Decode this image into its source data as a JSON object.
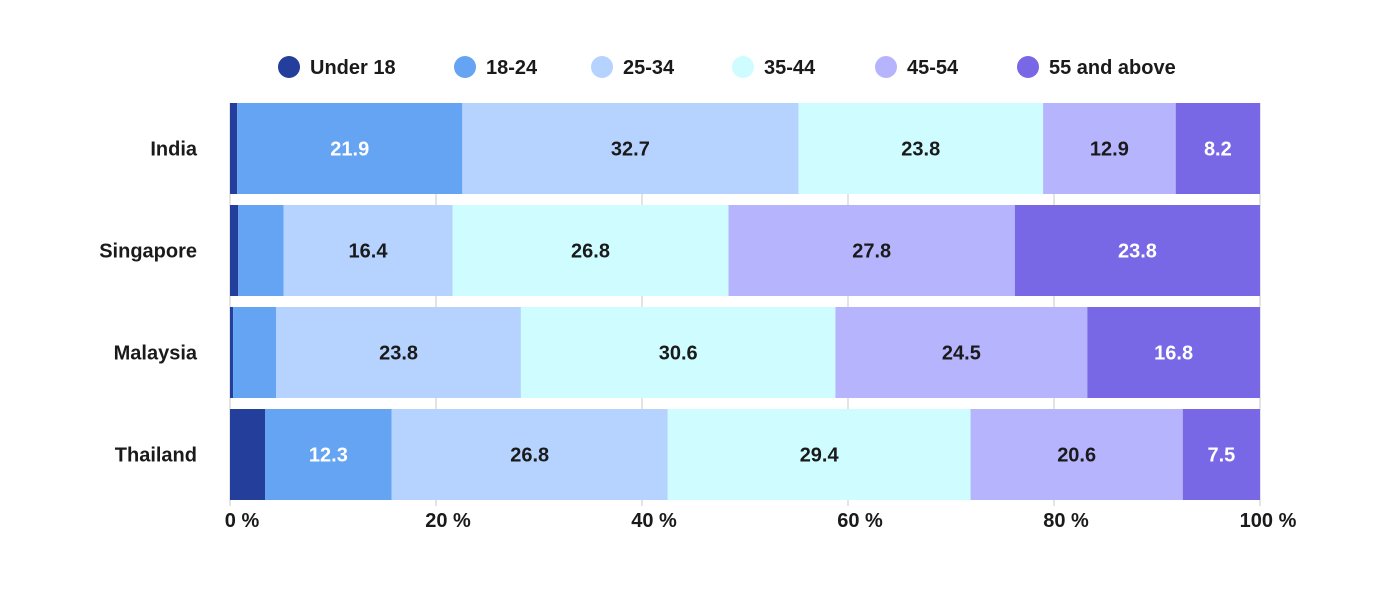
{
  "chart_data": {
    "type": "bar",
    "orientation": "horizontal",
    "stacked": true,
    "categories": [
      "India",
      "Singapore",
      "Malaysia",
      "Thailand"
    ],
    "series": [
      {
        "name": "Under 18",
        "color": "#233e9b",
        "values": [
          0.7,
          0.8,
          0.3,
          3.4
        ]
      },
      {
        "name": "18-24",
        "color": "#65a3f3",
        "values": [
          21.9,
          4.4,
          4.2,
          12.3
        ]
      },
      {
        "name": "25-34",
        "color": "#b5d3fe",
        "values": [
          32.7,
          16.4,
          23.8,
          26.8
        ]
      },
      {
        "name": "35-44",
        "color": "#cffcff",
        "values": [
          23.8,
          26.8,
          30.6,
          29.4
        ]
      },
      {
        "name": "45-54",
        "color": "#b7b4fe",
        "values": [
          12.9,
          27.8,
          24.5,
          20.6
        ]
      },
      {
        "name": "55 and above",
        "color": "#7868e6",
        "values": [
          8.2,
          23.8,
          16.8,
          7.5
        ]
      }
    ],
    "data_labels": [
      [
        null,
        "21.9",
        "32.7",
        "23.8",
        "12.9",
        "8.2"
      ],
      [
        null,
        null,
        "16.4",
        "26.8",
        "27.8",
        "23.8"
      ],
      [
        null,
        null,
        "23.8",
        "30.6",
        "24.5",
        "16.8"
      ],
      [
        null,
        "12.3",
        "26.8",
        "29.4",
        "20.6",
        "7.5"
      ]
    ],
    "xticks": [
      "0 %",
      "20 %",
      "40 %",
      "60 %",
      "80 %",
      "100 %"
    ],
    "xlim": [
      0,
      100
    ],
    "grid": true,
    "legend": "top-center",
    "title": "",
    "xlabel": "",
    "ylabel": ""
  }
}
